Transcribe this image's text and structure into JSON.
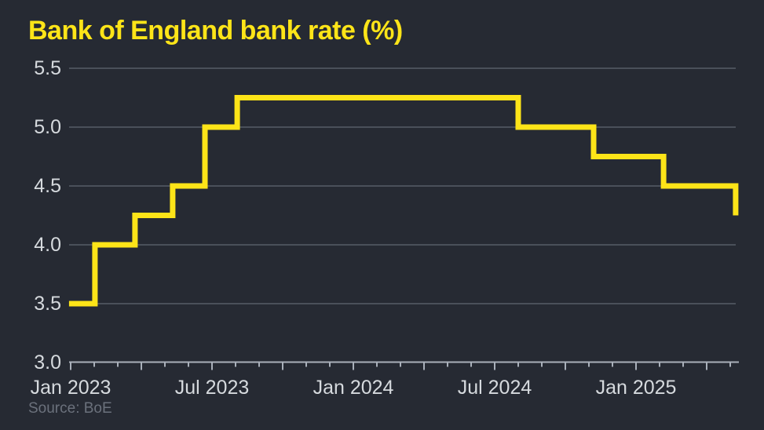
{
  "page": {
    "title": "Bank of England bank rate (%)",
    "source": "Source: BoE"
  },
  "colors": {
    "background": "#262a33",
    "line_yellow": "#fde418",
    "tick_text": "#d6dade",
    "gridline": "#565d68",
    "axis": "#a9b0ba",
    "source_text": "#6b717c"
  },
  "chart_data": {
    "type": "line",
    "step": true,
    "title": "Bank of England bank rate (%)",
    "source": "Source: BoE",
    "ylabel": "",
    "xlabel": "",
    "ylim": [
      3.0,
      5.5
    ],
    "yticks": [
      3.0,
      3.5,
      4.0,
      4.5,
      5.0,
      5.5
    ],
    "grid": true,
    "legend": false,
    "x_unit": "months since Jan 2023",
    "xlim": [
      -0.1,
      28.4
    ],
    "x_minor_tick_every": 1,
    "x_major_tick_every": 3,
    "xtick_labels": [
      {
        "month": 0,
        "label": "Jan 2023"
      },
      {
        "month": 6,
        "label": "Jul 2023"
      },
      {
        "month": 12,
        "label": "Jan 2024"
      },
      {
        "month": 18,
        "label": "Jul 2024"
      },
      {
        "month": 24,
        "label": "Jan 2025"
      }
    ],
    "series": [
      {
        "name": "Bank of England bank rate (%)",
        "steps": [
          {
            "period": "Jan 2023",
            "month": -0.07,
            "rate": 3.5
          },
          {
            "period": "Feb 2023",
            "month": 1.03,
            "rate": 4.0
          },
          {
            "period": "Mar 2023",
            "month": 2.73,
            "rate": 4.25
          },
          {
            "period": "May 2023",
            "month": 4.33,
            "rate": 4.5
          },
          {
            "period": "Jun 2023",
            "month": 5.7,
            "rate": 5.0
          },
          {
            "period": "Aug 2023",
            "month": 7.07,
            "rate": 5.25
          },
          {
            "period": "Aug 2024",
            "month": 19.0,
            "rate": 5.0
          },
          {
            "period": "Nov 2024",
            "month": 22.2,
            "rate": 4.75
          },
          {
            "period": "Feb 2025",
            "month": 25.17,
            "rate": 4.5
          },
          {
            "period": "May 2025",
            "month": 28.23,
            "rate": 4.25
          }
        ]
      }
    ]
  }
}
